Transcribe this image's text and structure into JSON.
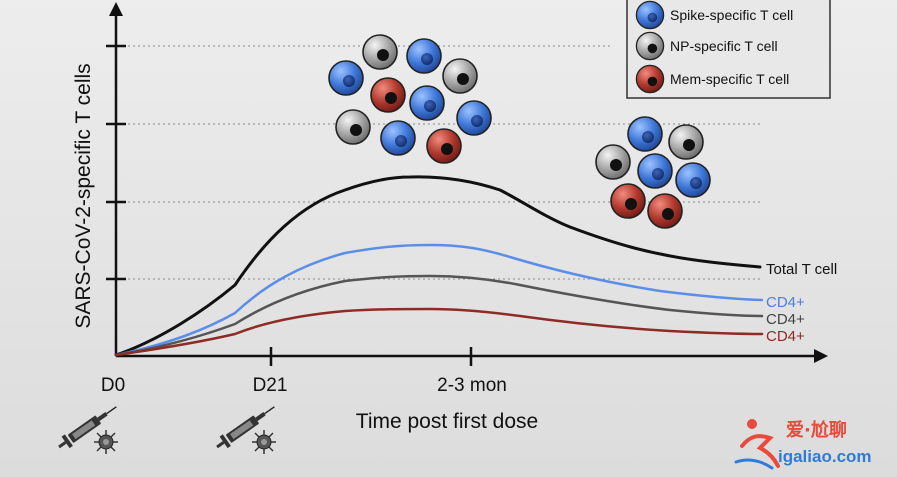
{
  "axes": {
    "ylabel": "SARS-CoV-2-specific T cells",
    "xlabel": "Time post first dose",
    "ticks": [
      "D0",
      "D21",
      "2-3 mon"
    ]
  },
  "legend": [
    {
      "label": "Spike-specific T cell",
      "color": "#3f78d8",
      "icon": "blue-cell-icon"
    },
    {
      "label": "NP-specific T cell",
      "color": "#9a9a9a",
      "icon": "grey-cell-icon"
    },
    {
      "label": "Mem-specific T cell",
      "color": "#b2392e",
      "icon": "red-cell-icon"
    }
  ],
  "curves": [
    {
      "label": "Total T cell",
      "color": "#111111"
    },
    {
      "label": "CD4+",
      "color": "#5b8ee8"
    },
    {
      "label": "CD4+",
      "color": "#555555"
    },
    {
      "label": "CD4+",
      "color": "#8e2b25"
    }
  ],
  "watermark": {
    "brand": "爱·尬聊",
    "url": "igaliao.com"
  },
  "icons": [
    "syringe-icon",
    "virus-icon"
  ]
}
